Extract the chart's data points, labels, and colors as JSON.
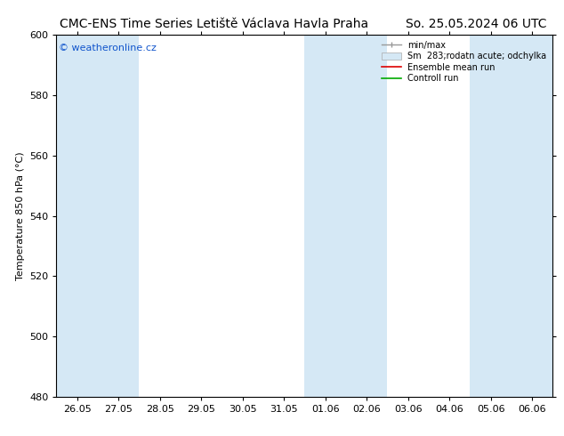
{
  "title_left": "CMC-ENS Time Series Letiště Václava Havla Praha",
  "title_right": "So. 25.05.2024 06 UTC",
  "ylabel": "Temperature 850 hPa (°C)",
  "ylim": [
    480,
    600
  ],
  "yticks": [
    480,
    500,
    520,
    540,
    560,
    580,
    600
  ],
  "xlabels": [
    "26.05",
    "27.05",
    "28.05",
    "29.05",
    "30.05",
    "31.05",
    "01.06",
    "02.06",
    "03.06",
    "04.06",
    "05.06",
    "06.06"
  ],
  "shaded_cols": [
    0,
    1,
    6,
    7,
    10,
    11
  ],
  "shade_color": "#d5e8f5",
  "bg_color": "#ffffff",
  "plot_bg": "#ffffff",
  "watermark": "© weatheronline.cz",
  "legend_entries": [
    "min/max",
    "Sm  283;rodatn acute; odchylka",
    "Ensemble mean run",
    "Controll run"
  ],
  "title_fontsize": 10,
  "axis_fontsize": 8,
  "tick_fontsize": 8
}
